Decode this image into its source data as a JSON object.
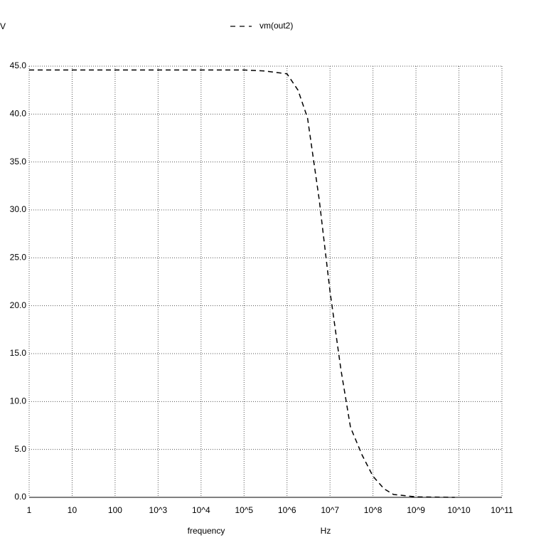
{
  "chart_data": {
    "type": "line",
    "y_label": "V",
    "x_label": "frequency",
    "x_unit": "Hz",
    "xscale": "log",
    "grid": true,
    "legend": "top",
    "xlim": [
      1,
      100000000000
    ],
    "xticks": [
      1,
      10,
      100,
      {
        "value": 1000,
        "label": "10^3"
      },
      {
        "value": 10000,
        "label": "10^4"
      },
      {
        "value": 100000,
        "label": "10^5"
      },
      {
        "value": 1000000,
        "label": "10^6"
      },
      {
        "value": 10000000,
        "label": "10^7"
      },
      {
        "value": 100000000,
        "label": "10^8"
      },
      {
        "value": 1000000000,
        "label": "10^9"
      },
      {
        "value": 10000000000,
        "label": "10^10"
      },
      {
        "value": 100000000000,
        "label": "10^11"
      }
    ],
    "ylim": [
      0,
      45
    ],
    "yticks": [
      {
        "value": 0,
        "label": "0.0"
      },
      {
        "value": 5,
        "label": "5.0"
      },
      {
        "value": 10,
        "label": "10.0"
      },
      {
        "value": 15,
        "label": "15.0"
      },
      {
        "value": 20,
        "label": "20.0"
      },
      {
        "value": 25,
        "label": "25.0"
      },
      {
        "value": 30,
        "label": "30.0"
      },
      {
        "value": 35,
        "label": "35.0"
      },
      {
        "value": 40,
        "label": "40.0"
      },
      {
        "value": 45,
        "label": "45.0"
      }
    ],
    "x": [
      1,
      10,
      100,
      1000,
      10000,
      100000,
      300000,
      1000000,
      1800000,
      3000000,
      5600000,
      10000000,
      18000000,
      30000000,
      56000000,
      100000000,
      180000000,
      300000000,
      1000000000,
      8000000000
    ],
    "series": [
      {
        "name": "vm(out2)",
        "color": "#000000",
        "dash": "dashed",
        "values": [
          44.6,
          44.6,
          44.6,
          44.6,
          44.6,
          44.6,
          44.5,
          44.2,
          42.5,
          39.6,
          31.1,
          21.5,
          13.3,
          7.3,
          4.4,
          2.2,
          0.9,
          0.3,
          0.05,
          0.0
        ]
      }
    ]
  }
}
